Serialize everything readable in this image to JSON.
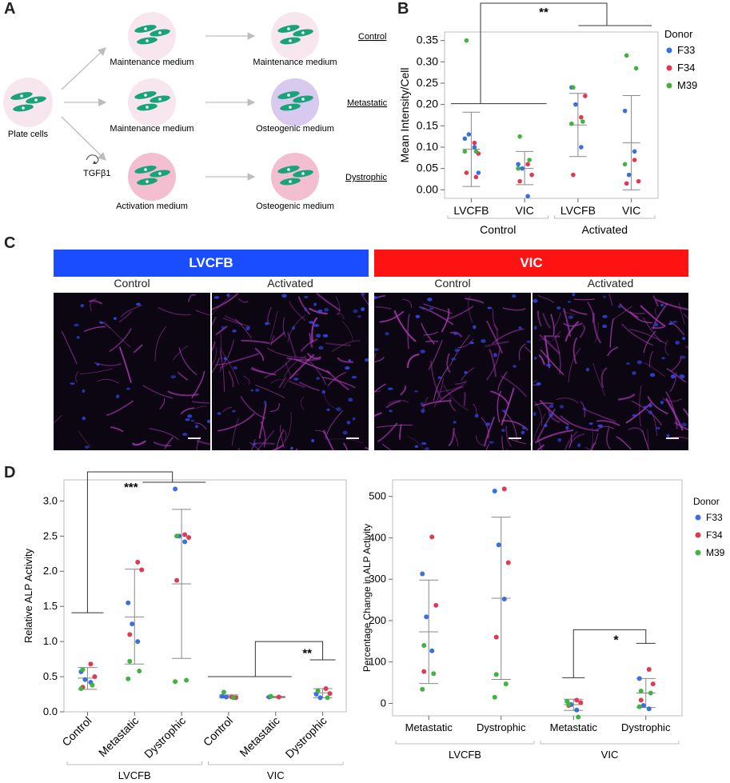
{
  "panels": {
    "a": "A",
    "b": "B",
    "c": "C",
    "d": "D"
  },
  "schematic": {
    "plate_cells": "Plate cells",
    "tgf": "TGFβ1",
    "rows": [
      {
        "label": "Control",
        "start": "Maintenance medium",
        "end": "Maintenance medium",
        "start_color": "#f8e6ee",
        "end_color": "#f8e6ee"
      },
      {
        "label": "Metastatic",
        "start": "Maintenance medium",
        "end": "Osteogenic medium",
        "start_color": "#f8e6ee",
        "end_color": "#d8c9ee"
      },
      {
        "label": "Dystrophic",
        "start": "Activation medium",
        "end": "Osteogenic medium",
        "start_color": "#f3bfd0",
        "end_color": "#f3bfd0"
      }
    ]
  },
  "panel_c": {
    "banners": [
      {
        "text": "LVCFB",
        "color": "#1a4dff"
      },
      {
        "text": "VIC",
        "color": "#ff1212"
      }
    ],
    "labels": [
      "Control",
      "Activated",
      "Control",
      "Activated"
    ]
  },
  "colors": {
    "F33": "#3a6fe0",
    "F34": "#e03a52",
    "M39": "#3fb53f"
  },
  "chart_data": [
    {
      "type": "scatter",
      "panel": "B",
      "ylabel": "Mean Intensity/Cell",
      "ylim": [
        -0.02,
        0.37
      ],
      "yticks": [
        "0.00",
        "0.05",
        "0.10",
        "0.15",
        "0.20",
        "0.25",
        "0.30",
        "0.35"
      ],
      "categories": [
        "LVCFB",
        "VIC",
        "LVCFB",
        "VIC"
      ],
      "groups": [
        "Control",
        "Activated"
      ],
      "legend_title": "Donor",
      "legend": [
        "F33",
        "F34",
        "M39"
      ],
      "significance": [
        "**"
      ],
      "summary": [
        {
          "mean": 0.095,
          "lo": 0.008,
          "hi": 0.182
        },
        {
          "mean": 0.05,
          "lo": 0.012,
          "hi": 0.09
        },
        {
          "mean": 0.152,
          "lo": 0.078,
          "hi": 0.226
        },
        {
          "mean": 0.11,
          "lo": 0.0,
          "hi": 0.221
        }
      ],
      "series": [
        {
          "name": "F33",
          "points": [
            [
              0,
              0.12
            ],
            [
              0,
              0.13
            ],
            [
              0,
              0.1
            ],
            [
              0,
              0.04
            ],
            [
              1,
              0.06
            ],
            [
              1,
              0.05
            ],
            [
              1,
              -0.015
            ],
            [
              2,
              0.24
            ],
            [
              2,
              0.2
            ],
            [
              2,
              0.1
            ],
            [
              3,
              0.185
            ],
            [
              3,
              0.035
            ],
            [
              3,
              0.09
            ]
          ]
        },
        {
          "name": "F34",
          "points": [
            [
              0,
              0.11
            ],
            [
              0,
              0.085
            ],
            [
              0,
              0.04
            ],
            [
              0,
              0.03
            ],
            [
              1,
              0.06
            ],
            [
              1,
              0.035
            ],
            [
              1,
              0.02
            ],
            [
              2,
              0.17
            ],
            [
              2,
              0.22
            ],
            [
              2,
              0.035
            ],
            [
              3,
              0.07
            ],
            [
              3,
              0.02
            ],
            [
              3,
              0.015
            ]
          ]
        },
        {
          "name": "M39",
          "points": [
            [
              0,
              0.35
            ],
            [
              0,
              0.09
            ],
            [
              0,
              0.09
            ],
            [
              1,
              0.125
            ],
            [
              1,
              0.07
            ],
            [
              1,
              0.05
            ],
            [
              2,
              0.24
            ],
            [
              2,
              0.16
            ],
            [
              2,
              0.155
            ],
            [
              3,
              0.315
            ],
            [
              3,
              0.285
            ],
            [
              3,
              0.06
            ]
          ]
        }
      ]
    },
    {
      "type": "scatter",
      "panel": "D-left",
      "ylabel": "Relative ALP Activity",
      "ylim": [
        0,
        3.3
      ],
      "yticks": [
        "0.0",
        "0.5",
        "1.0",
        "1.5",
        "2.0",
        "2.5",
        "3.0"
      ],
      "categories": [
        "Control",
        "Metastatic",
        "Dystrophic",
        "Control",
        "Metastatic",
        "Dystrophic"
      ],
      "groups": [
        "LVCFB",
        "VIC"
      ],
      "significance": [
        "***",
        "**"
      ],
      "summary": [
        {
          "mean": 0.48,
          "lo": 0.32,
          "hi": 0.63
        },
        {
          "mean": 1.35,
          "lo": 0.68,
          "hi": 2.03
        },
        {
          "mean": 1.82,
          "lo": 0.76,
          "hi": 2.88
        },
        {
          "mean": 0.22,
          "lo": 0.2,
          "hi": 0.24
        },
        {
          "mean": 0.21,
          "lo": 0.2,
          "hi": 0.22
        },
        {
          "mean": 0.27,
          "lo": 0.2,
          "hi": 0.33
        }
      ],
      "series": [
        {
          "name": "F33",
          "points": [
            [
              0,
              0.57
            ],
            [
              0,
              0.46
            ],
            [
              0,
              0.42
            ],
            [
              1,
              1.55
            ],
            [
              1,
              1.25
            ],
            [
              1,
              1.0
            ],
            [
              2,
              3.17
            ],
            [
              2,
              2.5
            ],
            [
              2,
              2.42
            ],
            [
              3,
              0.22
            ],
            [
              3,
              0.21
            ],
            [
              4,
              0.21
            ],
            [
              5,
              0.25
            ],
            [
              5,
              0.2
            ]
          ]
        },
        {
          "name": "F34",
          "points": [
            [
              0,
              0.68
            ],
            [
              0,
              0.5
            ],
            [
              0,
              0.35
            ],
            [
              1,
              2.13
            ],
            [
              1,
              2.02
            ],
            [
              1,
              1.1
            ],
            [
              2,
              2.52
            ],
            [
              2,
              2.48
            ],
            [
              2,
              1.87
            ],
            [
              3,
              0.21
            ],
            [
              3,
              0.2
            ],
            [
              4,
              0.21
            ],
            [
              5,
              0.33
            ],
            [
              5,
              0.26
            ]
          ]
        },
        {
          "name": "M39",
          "points": [
            [
              0,
              0.6
            ],
            [
              0,
              0.38
            ],
            [
              0,
              0.33
            ],
            [
              1,
              0.72
            ],
            [
              1,
              0.58
            ],
            [
              1,
              0.47
            ],
            [
              2,
              2.5
            ],
            [
              2,
              0.45
            ],
            [
              2,
              0.43
            ],
            [
              3,
              0.28
            ],
            [
              3,
              0.2
            ],
            [
              4,
              0.22
            ],
            [
              5,
              0.3
            ],
            [
              5,
              0.2
            ]
          ]
        }
      ]
    },
    {
      "type": "scatter",
      "panel": "D-right",
      "ylabel": "Percentage Change in ALP Activity",
      "ylim": [
        -30,
        540
      ],
      "yticks": [
        "0",
        "100",
        "200",
        "300",
        "400",
        "500"
      ],
      "categories": [
        "Metastatic",
        "Dystrophic",
        "Metastatic",
        "Dystrophic"
      ],
      "groups": [
        "LVCFB",
        "VIC"
      ],
      "legend_title": "Donor",
      "legend": [
        "F33",
        "F34",
        "M39"
      ],
      "significance": [
        "*"
      ],
      "summary": [
        {
          "mean": 173,
          "lo": 48,
          "hi": 298
        },
        {
          "mean": 254,
          "lo": 58,
          "hi": 450
        },
        {
          "mean": -3,
          "lo": -17,
          "hi": 10
        },
        {
          "mean": 25,
          "lo": -10,
          "hi": 60
        }
      ],
      "series": [
        {
          "name": "F33",
          "points": [
            [
              0,
              313
            ],
            [
              0,
              209
            ],
            [
              0,
              127
            ],
            [
              1,
              513
            ],
            [
              1,
              383
            ],
            [
              1,
              252
            ],
            [
              2,
              5
            ],
            [
              2,
              -3
            ],
            [
              2,
              -16
            ],
            [
              3,
              60
            ],
            [
              3,
              -5
            ],
            [
              3,
              -13
            ]
          ]
        },
        {
          "name": "F34",
          "points": [
            [
              0,
              402
            ],
            [
              0,
              237
            ],
            [
              0,
              77
            ],
            [
              1,
              518
            ],
            [
              1,
              340
            ],
            [
              1,
              160
            ],
            [
              2,
              8
            ],
            [
              2,
              2
            ],
            [
              2,
              -5
            ],
            [
              3,
              82
            ],
            [
              3,
              47
            ],
            [
              3,
              8
            ]
          ]
        },
        {
          "name": "M39",
          "points": [
            [
              0,
              140
            ],
            [
              0,
              72
            ],
            [
              0,
              34
            ],
            [
              1,
              70
            ],
            [
              1,
              47
            ],
            [
              1,
              15
            ],
            [
              2,
              -2
            ],
            [
              2,
              -33
            ],
            [
              2,
              5
            ],
            [
              3,
              30
            ],
            [
              3,
              25
            ],
            [
              3,
              -8
            ]
          ]
        }
      ]
    }
  ]
}
